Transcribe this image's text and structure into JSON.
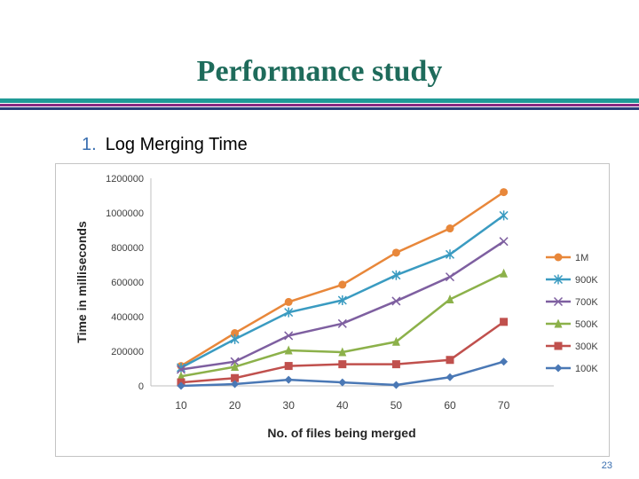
{
  "slide": {
    "title": "Performance study",
    "bullet_number": "1.",
    "bullet_text": "Log Merging Time",
    "page_number": "23"
  },
  "colors": {
    "title": "#1e6b5b",
    "bar_teal": "#1f9b96",
    "bar_purple": "#8a2b82",
    "bar_navy": "#2a3f7a"
  },
  "chart_data": {
    "type": "line",
    "title": "",
    "xlabel": "No. of files being merged",
    "ylabel": "Time in  milliseconds",
    "x": [
      10,
      20,
      30,
      40,
      50,
      60,
      70
    ],
    "x_tick_labels": [
      "10",
      "20",
      "30",
      "40",
      "50",
      "60",
      "70"
    ],
    "ylim": [
      0,
      1200000
    ],
    "y_ticks": [
      0,
      200000,
      400000,
      600000,
      800000,
      1000000,
      1200000
    ],
    "y_tick_labels": [
      "0",
      "200000",
      "400000",
      "600000",
      "800000",
      "1000000",
      "1200000"
    ],
    "grid": false,
    "legend_position": "right",
    "series": [
      {
        "name": "1M",
        "color": "#e8873a",
        "marker": "circle",
        "values": [
          115000,
          305000,
          485000,
          585000,
          770000,
          910000,
          1120000
        ]
      },
      {
        "name": "900K",
        "color": "#3a9bc1",
        "marker": "star",
        "values": [
          105000,
          270000,
          425000,
          495000,
          640000,
          760000,
          985000
        ]
      },
      {
        "name": "700K",
        "color": "#7e5fa0",
        "marker": "x",
        "values": [
          95000,
          140000,
          290000,
          360000,
          490000,
          630000,
          835000
        ]
      },
      {
        "name": "500K",
        "color": "#8cb14a",
        "marker": "triangle",
        "values": [
          55000,
          110000,
          205000,
          195000,
          255000,
          500000,
          650000
        ]
      },
      {
        "name": "300K",
        "color": "#c0504d",
        "marker": "square",
        "values": [
          20000,
          45000,
          115000,
          125000,
          125000,
          150000,
          370000
        ]
      },
      {
        "name": "100K",
        "color": "#4a78b5",
        "marker": "diamond",
        "values": [
          0,
          10000,
          35000,
          20000,
          5000,
          50000,
          140000
        ]
      }
    ]
  }
}
